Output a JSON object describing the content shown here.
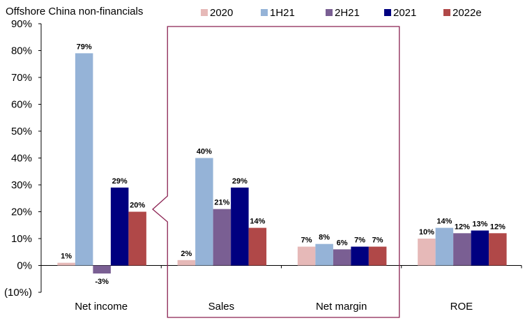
{
  "chart_data": {
    "type": "bar",
    "title": "Offshore China non-financials",
    "categories": [
      "Net income",
      "Sales",
      "Net margin",
      "ROE"
    ],
    "series": [
      {
        "name": "2020",
        "color": "#e6b9b8",
        "values": [
          1,
          2,
          7,
          10
        ],
        "labels": [
          "1%",
          "2%",
          "7%",
          "10%"
        ]
      },
      {
        "name": "1H21",
        "color": "#95b3d7",
        "values": [
          79,
          40,
          8,
          14
        ],
        "labels": [
          "79%",
          "40%",
          "8%",
          "14%"
        ]
      },
      {
        "name": "2H21",
        "color": "#7a5f93",
        "values": [
          -3,
          21,
          6,
          12
        ],
        "labels": [
          "-3%",
          "21%",
          "6%",
          "12%"
        ]
      },
      {
        "name": "2021",
        "color": "#000080",
        "values": [
          29,
          29,
          7,
          13
        ],
        "labels": [
          "29%",
          "29%",
          "7%",
          "13%"
        ]
      },
      {
        "name": "2022e",
        "color": "#b04848",
        "values": [
          20,
          14,
          7,
          12
        ],
        "labels": [
          "20%",
          "14%",
          "7%",
          "12%"
        ]
      }
    ],
    "ylim": [
      -10,
      90
    ],
    "yticks": [
      -10,
      0,
      10,
      20,
      30,
      40,
      50,
      60,
      70,
      80,
      90
    ],
    "ytick_labels": [
      "(10%)",
      "0%",
      "10%",
      "20%",
      "30%",
      "40%",
      "50%",
      "60%",
      "70%",
      "80%",
      "90%"
    ],
    "negative_label_color": "#e00000",
    "highlight_color": "#8b2252",
    "legend_position": "top"
  }
}
